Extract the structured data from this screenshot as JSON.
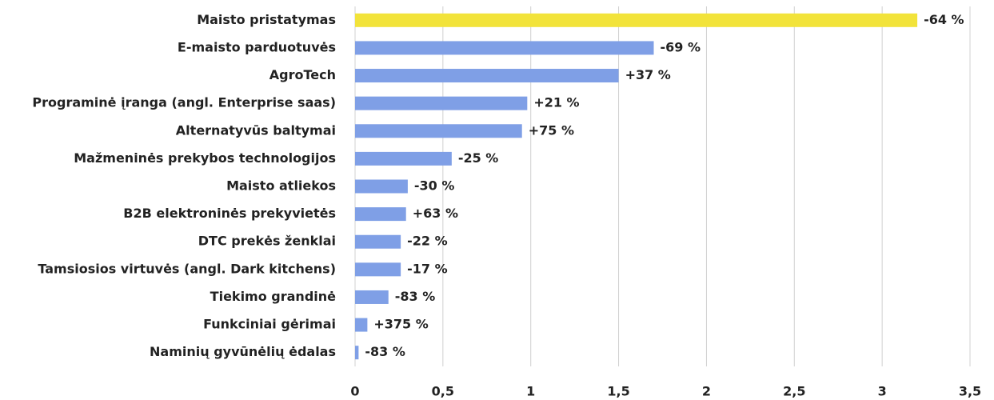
{
  "chart_data": {
    "type": "hbar",
    "categories": [
      "Maisto pristatymas",
      "E-maisto parduotuvės",
      "AgroTech",
      "Programinė įranga (angl. Enterprise saas)",
      "Alternatyvūs baltymai",
      "Mažmeninės prekybos technologijos",
      "Maisto atliekos",
      "B2B elektroninės prekyvietės",
      "DTC prekės ženklai",
      "Tamsiosios virtuvės (angl. Dark kitchens)",
      "Tiekimo grandinė",
      "Funkciniai gėrimai",
      "Naminių gyvūnėlių ėdalas"
    ],
    "values": [
      3.2,
      1.7,
      1.5,
      0.98,
      0.95,
      0.55,
      0.3,
      0.29,
      0.26,
      0.26,
      0.19,
      0.07,
      0.02
    ],
    "colors": [
      "#f2e33a",
      "#7f9fe6",
      "#7f9fe6",
      "#7f9fe6",
      "#7f9fe6",
      "#7f9fe6",
      "#7f9fe6",
      "#7f9fe6",
      "#7f9fe6",
      "#7f9fe6",
      "#7f9fe6",
      "#7f9fe6",
      "#7f9fe6"
    ],
    "change_labels": [
      "-64 %",
      "-69 %",
      "+37 %",
      "+21 %",
      "+75 %",
      "-25 %",
      "-30 %",
      "+63 %",
      "-22 %",
      "-17 %",
      "-83 %",
      "+375 %",
      "-83 %"
    ],
    "change_label_colors": [
      "#ff0000",
      "#ff0000",
      "#22b14c",
      "#22b14c",
      "#22b14c",
      "#ff0000",
      "#ff0000",
      "#22b14c",
      "#ff0000",
      "#ff0000",
      "#ff0000",
      "#22b14c",
      "#ff0000"
    ],
    "xlim": [
      0,
      3.5
    ],
    "xticks": [
      0,
      {
        "value": 0.5,
        "label": "0,5"
      },
      1,
      {
        "value": 1.5,
        "label": "1,5"
      },
      2,
      {
        "value": 2.5,
        "label": "2,5"
      },
      3,
      {
        "value": 3.5,
        "label": "3,5"
      }
    ],
    "grid": true
  }
}
